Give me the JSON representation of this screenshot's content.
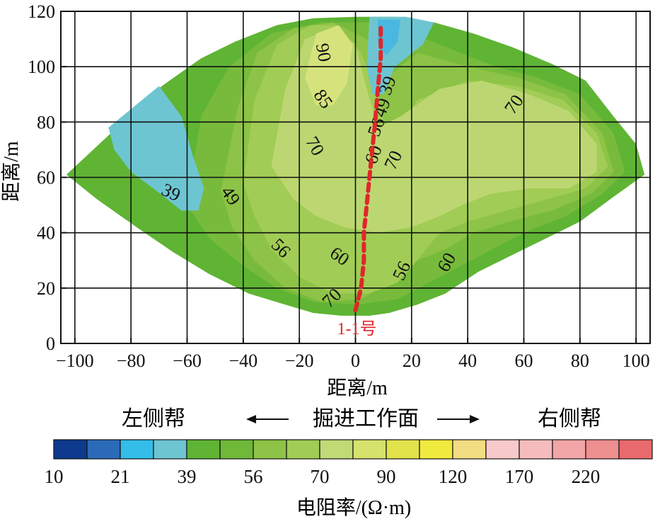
{
  "chart_data": {
    "type": "heatmap",
    "xlabel": "距离/m",
    "ylabel": "距离/m",
    "xlim": [
      -105,
      105
    ],
    "ylim": [
      0,
      120
    ],
    "x_ticks": [
      -100,
      -80,
      -60,
      -40,
      -20,
      0,
      20,
      40,
      60,
      80,
      100
    ],
    "y_ticks": [
      0,
      20,
      40,
      60,
      80,
      100,
      120
    ],
    "grid": true,
    "survey_outline": [
      [
        -103,
        61
      ],
      [
        -85,
        78
      ],
      [
        -69,
        93
      ],
      [
        -55,
        103
      ],
      [
        -43,
        109
      ],
      [
        -28,
        115
      ],
      [
        -15,
        117.5
      ],
      [
        0,
        118
      ],
      [
        15,
        118
      ],
      [
        28,
        116
      ],
      [
        42,
        112
      ],
      [
        56,
        107
      ],
      [
        70,
        101
      ],
      [
        82,
        95
      ],
      [
        92,
        82
      ],
      [
        100,
        72
      ],
      [
        103,
        61
      ],
      [
        92,
        53
      ],
      [
        80,
        44
      ],
      [
        68,
        38
      ],
      [
        56,
        32
      ],
      [
        44,
        26
      ],
      [
        32,
        18
      ],
      [
        22,
        14
      ],
      [
        12,
        11
      ],
      [
        5,
        10
      ],
      [
        -5,
        10
      ],
      [
        -15,
        11
      ],
      [
        -25,
        14
      ],
      [
        -38,
        18
      ],
      [
        -52,
        25
      ],
      [
        -65,
        33
      ],
      [
        -78,
        42
      ],
      [
        -92,
        52
      ]
    ],
    "zones": [
      {
        "level": 39,
        "color": "#5fb434",
        "points": [
          [
            -103,
            61
          ],
          [
            -85,
            78
          ],
          [
            -69,
            93
          ],
          [
            -55,
            103
          ],
          [
            -43,
            109
          ],
          [
            -28,
            115
          ],
          [
            -15,
            117.5
          ],
          [
            0,
            118
          ],
          [
            15,
            118
          ],
          [
            28,
            116
          ],
          [
            42,
            112
          ],
          [
            56,
            107
          ],
          [
            70,
            101
          ],
          [
            82,
            95
          ],
          [
            92,
            82
          ],
          [
            100,
            72
          ],
          [
            103,
            61
          ],
          [
            92,
            53
          ],
          [
            80,
            44
          ],
          [
            68,
            38
          ],
          [
            56,
            32
          ],
          [
            44,
            26
          ],
          [
            32,
            18
          ],
          [
            22,
            14
          ],
          [
            12,
            11
          ],
          [
            5,
            10
          ],
          [
            -5,
            10
          ],
          [
            -15,
            11
          ],
          [
            -25,
            14
          ],
          [
            -38,
            18
          ],
          [
            -52,
            25
          ],
          [
            -65,
            33
          ],
          [
            -78,
            42
          ],
          [
            -92,
            52
          ]
        ]
      },
      {
        "level": 49,
        "color": "#78bb3c",
        "points": [
          [
            -60,
            50
          ],
          [
            -55,
            82
          ],
          [
            -45,
            100
          ],
          [
            -30,
            112
          ],
          [
            -12,
            116
          ],
          [
            5,
            116
          ],
          [
            20,
            112
          ],
          [
            35,
            106
          ],
          [
            50,
            100
          ],
          [
            65,
            96
          ],
          [
            80,
            90
          ],
          [
            92,
            76
          ],
          [
            96,
            62
          ],
          [
            88,
            54
          ],
          [
            75,
            46
          ],
          [
            60,
            40
          ],
          [
            45,
            32
          ],
          [
            30,
            24
          ],
          [
            15,
            16
          ],
          [
            0,
            14
          ],
          [
            -15,
            15
          ],
          [
            -28,
            20
          ],
          [
            -40,
            28
          ],
          [
            -52,
            38
          ]
        ]
      },
      {
        "level": 56,
        "color": "#8dc346",
        "points": [
          [
            -48,
            55
          ],
          [
            -42,
            85
          ],
          [
            -35,
            105
          ],
          [
            -22,
            114
          ],
          [
            -8,
            116
          ],
          [
            4,
            110
          ],
          [
            10,
            95
          ],
          [
            22,
            105
          ],
          [
            40,
            100
          ],
          [
            58,
            96
          ],
          [
            75,
            90
          ],
          [
            88,
            76
          ],
          [
            92,
            62
          ],
          [
            84,
            54
          ],
          [
            70,
            48
          ],
          [
            55,
            44
          ],
          [
            42,
            40
          ],
          [
            32,
            34
          ],
          [
            22,
            30
          ],
          [
            12,
            22
          ],
          [
            2,
            16
          ],
          [
            -12,
            15
          ],
          [
            -25,
            20
          ],
          [
            -36,
            30
          ],
          [
            -44,
            42
          ]
        ]
      },
      {
        "level": 60,
        "color": "#a1cc55",
        "points": [
          [
            -40,
            58
          ],
          [
            -36,
            88
          ],
          [
            -28,
            108
          ],
          [
            -16,
            115
          ],
          [
            -6,
            115
          ],
          [
            2,
            105
          ],
          [
            8,
            90
          ],
          [
            12,
            72
          ],
          [
            22,
            88
          ],
          [
            40,
            95
          ],
          [
            58,
            93
          ],
          [
            74,
            88
          ],
          [
            86,
            76
          ],
          [
            90,
            64
          ],
          [
            82,
            56
          ],
          [
            68,
            52
          ],
          [
            54,
            48
          ],
          [
            40,
            44
          ],
          [
            30,
            40
          ],
          [
            22,
            30
          ],
          [
            15,
            22
          ],
          [
            5,
            18
          ],
          [
            -8,
            18
          ],
          [
            -20,
            24
          ],
          [
            -30,
            34
          ],
          [
            -36,
            46
          ]
        ]
      },
      {
        "level": 70,
        "color": "#bcd771",
        "points": [
          [
            -30,
            64
          ],
          [
            -25,
            92
          ],
          [
            -18,
            110
          ],
          [
            -8,
            114
          ],
          [
            0,
            108
          ],
          [
            4,
            92
          ],
          [
            8,
            78
          ],
          [
            16,
            82
          ],
          [
            30,
            92
          ],
          [
            45,
            95
          ],
          [
            62,
            90
          ],
          [
            76,
            84
          ],
          [
            86,
            72
          ],
          [
            86,
            62
          ],
          [
            76,
            56
          ],
          [
            62,
            56
          ],
          [
            48,
            54
          ],
          [
            38,
            50
          ],
          [
            30,
            46
          ],
          [
            20,
            42
          ],
          [
            8,
            40
          ],
          [
            -4,
            42
          ],
          [
            -14,
            46
          ],
          [
            -22,
            52
          ]
        ]
      },
      {
        "level": 85,
        "color": "#d6e37c",
        "points": [
          [
            -18,
            96
          ],
          [
            -14,
            112
          ],
          [
            -6,
            115
          ],
          [
            -1,
            108
          ],
          [
            -3,
            94
          ],
          [
            -8,
            86
          ],
          [
            -14,
            86
          ]
        ]
      },
      {
        "level": 39,
        "color": "#6ec5d2",
        "points": [
          [
            -88,
            78
          ],
          [
            -70,
            93
          ],
          [
            -62,
            82
          ],
          [
            -58,
            68
          ],
          [
            -54,
            56
          ],
          [
            -56,
            48
          ],
          [
            -62,
            48
          ],
          [
            -72,
            56
          ],
          [
            -80,
            62
          ],
          [
            -86,
            70
          ]
        ]
      },
      {
        "level": 39,
        "color": "#6ec5d2",
        "points": [
          [
            5,
            118
          ],
          [
            18,
            118
          ],
          [
            28,
            116
          ],
          [
            24,
            108
          ],
          [
            14,
            100
          ],
          [
            10,
            90
          ],
          [
            6,
            90
          ],
          [
            4,
            100
          ]
        ]
      },
      {
        "level": 21,
        "color": "#48b8e0",
        "points": [
          [
            8,
            117
          ],
          [
            16,
            117
          ],
          [
            15,
            109
          ],
          [
            11,
            104
          ],
          [
            8,
            108
          ]
        ]
      }
    ],
    "contour_labels": [
      {
        "text": "90",
        "x": -12,
        "y": 105,
        "angle": 80
      },
      {
        "text": "85",
        "x": -12,
        "y": 88,
        "angle": 55
      },
      {
        "text": "70",
        "x": -15,
        "y": 71,
        "angle": 60
      },
      {
        "text": "39",
        "x": 12,
        "y": 93,
        "angle": -70
      },
      {
        "text": "49",
        "x": 10,
        "y": 85,
        "angle": -70
      },
      {
        "text": "56",
        "x": 8,
        "y": 78,
        "angle": -70
      },
      {
        "text": "60",
        "x": 7,
        "y": 68,
        "angle": -70
      },
      {
        "text": "70",
        "x": 14,
        "y": 66,
        "angle": -65
      },
      {
        "text": "70",
        "x": 57,
        "y": 86,
        "angle": -55
      },
      {
        "text": "39",
        "x": -66,
        "y": 54,
        "angle": 25
      },
      {
        "text": "49",
        "x": -45,
        "y": 53,
        "angle": 55
      },
      {
        "text": "56",
        "x": -27,
        "y": 34,
        "angle": 45
      },
      {
        "text": "60",
        "x": -6,
        "y": 31,
        "angle": 35
      },
      {
        "text": "70",
        "x": -8,
        "y": 16,
        "angle": -45
      },
      {
        "text": "56",
        "x": 17,
        "y": 26,
        "angle": -65
      },
      {
        "text": "60",
        "x": 33,
        "y": 29,
        "angle": -60
      }
    ],
    "section_line": {
      "label": "1-1号",
      "color": "#e0262a",
      "points": [
        [
          0,
          12
        ],
        [
          2,
          20
        ],
        [
          3,
          30
        ],
        [
          3,
          40
        ],
        [
          4,
          50
        ],
        [
          5,
          60
        ],
        [
          6,
          70
        ],
        [
          7,
          80
        ],
        [
          8,
          92
        ],
        [
          9,
          103
        ],
        [
          9,
          114
        ]
      ]
    },
    "direction": {
      "left": "左侧帮",
      "center": "掘进工作面",
      "right": "右侧帮"
    },
    "legend": {
      "title": "电阻率/(Ω·m)",
      "tick_labels": [
        "10",
        "21",
        "39",
        "56",
        "70",
        "90",
        "120",
        "170",
        "220"
      ],
      "colors": [
        "#0d3a8e",
        "#2b6ab8",
        "#33bde8",
        "#6ec5d2",
        "#5fb434",
        "#6fb838",
        "#8dc346",
        "#a1cc55",
        "#c0da76",
        "#d5e26c",
        "#e2e34a",
        "#f0ea3e",
        "#f3dd82",
        "#f7c9ca",
        "#f5bcbd",
        "#f2a5a7",
        "#ee8f90",
        "#e96a6c"
      ]
    }
  }
}
